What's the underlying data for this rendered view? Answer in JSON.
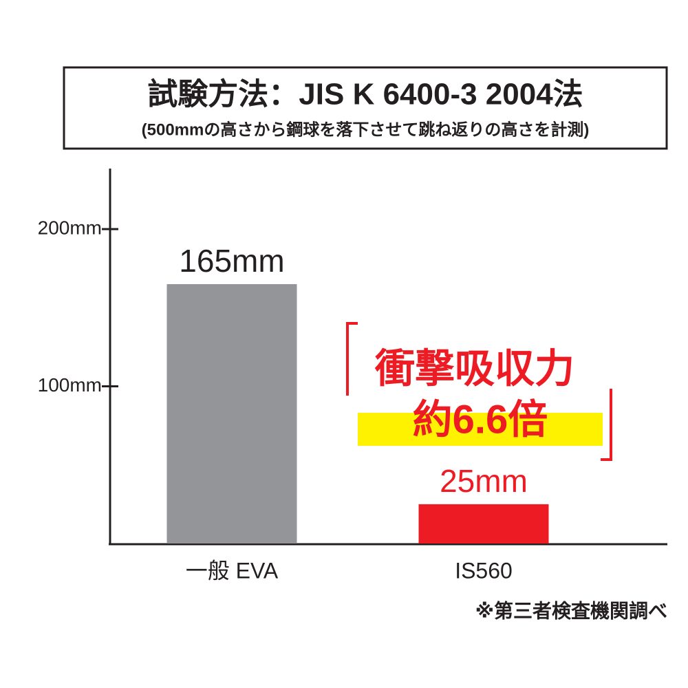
{
  "chart_data": {
    "type": "bar",
    "title": "試験方法：JIS K 6400-3 2004法",
    "subtitle": "(500mmの高さから鋼球を落下させて跳ね返りの高さを計測)",
    "categories": [
      "一般 EVA",
      "IS560"
    ],
    "values": [
      165,
      25
    ],
    "value_labels": [
      "165mm",
      "25mm"
    ],
    "colors": [
      "#939598",
      "#ed1c24"
    ],
    "value_label_colors": [
      "#231f20",
      "#ed1c24"
    ],
    "ylim": [
      0,
      239
    ],
    "yticks": [
      {
        "value": 100,
        "label": "100mm"
      },
      {
        "value": 200,
        "label": "200mm"
      }
    ],
    "annotation": [
      "衝撃吸収力",
      "約6.6倍"
    ],
    "footnote": "※第三者検査機関調べ"
  }
}
